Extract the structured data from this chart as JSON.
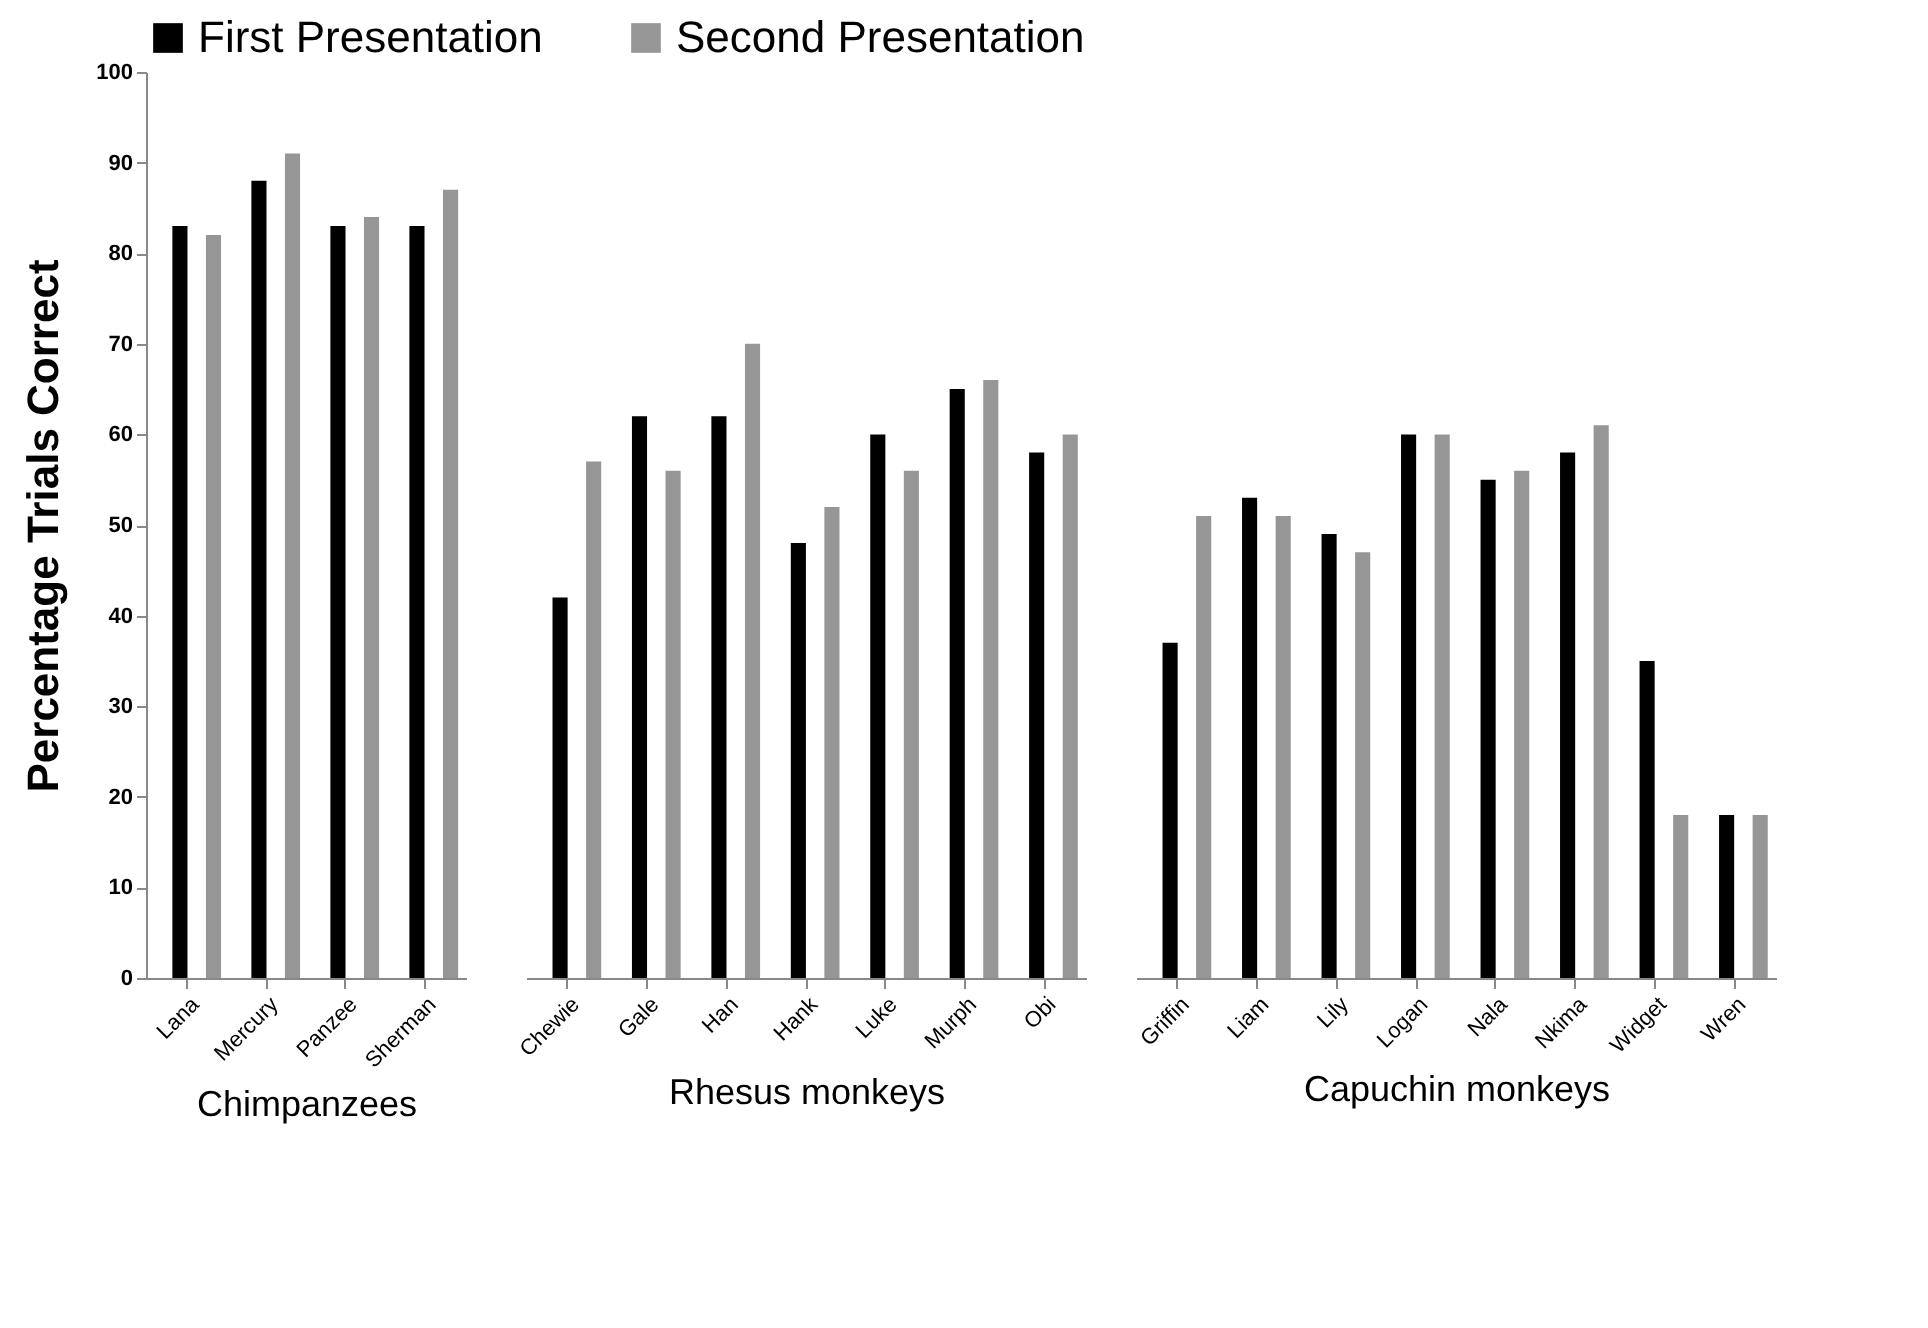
{
  "chart_data": [
    {
      "type": "bar",
      "xlabel": "Chimpanzees",
      "ylabel": "Percentage Trials Correct",
      "categories": [
        "Lana",
        "Mercury",
        "Panzee",
        "Sherman"
      ],
      "series": [
        {
          "name": "First Presentation",
          "color": "#000000",
          "values": [
            83,
            88,
            83,
            83
          ]
        },
        {
          "name": "Second Presentation",
          "color": "#969696",
          "values": [
            82,
            91,
            84,
            87
          ]
        }
      ],
      "ylim": [
        0,
        100
      ],
      "yticks": [
        0,
        10,
        20,
        30,
        40,
        50,
        60,
        70,
        80,
        90,
        100
      ],
      "legend": "top"
    },
    {
      "type": "bar",
      "xlabel": "Rhesus monkeys",
      "categories": [
        "Chewie",
        "Gale",
        "Han",
        "Hank",
        "Luke",
        "Murph",
        "Obi"
      ],
      "series": [
        {
          "name": "First Presentation",
          "color": "#000000",
          "values": [
            42,
            62,
            62,
            48,
            60,
            65,
            58
          ]
        },
        {
          "name": "Second Presentation",
          "color": "#969696",
          "values": [
            57,
            56,
            70,
            52,
            56,
            66,
            60
          ]
        }
      ],
      "ylim": [
        0,
        100
      ],
      "yticks": [
        0,
        10,
        20,
        30,
        40,
        50,
        60,
        70,
        80,
        90,
        100
      ],
      "tick_labels": "x"
    },
    {
      "type": "bar",
      "xlabel": "Capuchin monkeys",
      "categories": [
        "Griffin",
        "Liam",
        "Lily",
        "Logan",
        "Nala",
        "Nkima",
        "Widget",
        "Wren"
      ],
      "series": [
        {
          "name": "First Presentation",
          "color": "#000000",
          "values": [
            37,
            53,
            49,
            60,
            55,
            58,
            35,
            18
          ]
        },
        {
          "name": "Second Presentation",
          "color": "#969696",
          "values": [
            51,
            51,
            47,
            60,
            56,
            61,
            18,
            18
          ]
        }
      ],
      "ylim": [
        0,
        100
      ],
      "yticks": [
        0,
        10,
        20,
        30,
        40,
        50,
        60,
        70,
        80,
        90,
        100
      ],
      "tick_labels": "x"
    }
  ]
}
